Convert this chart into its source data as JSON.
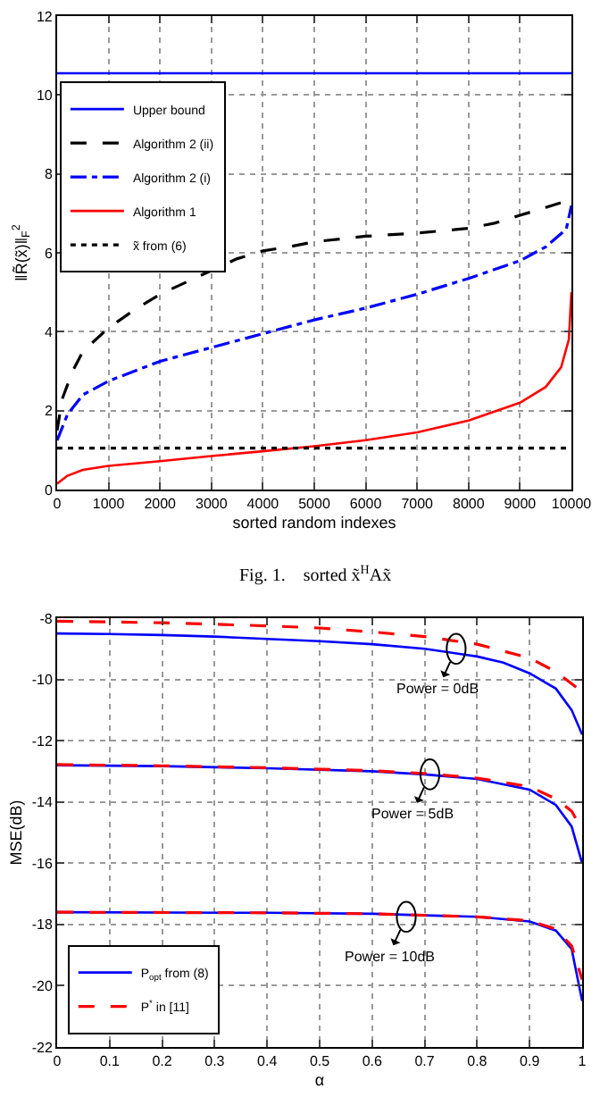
{
  "chart_data": [
    {
      "type": "line",
      "xlabel": "sorted random indexes",
      "ylabel": "‖R̃(x̃)‖$_{F}$$^{2}$",
      "annotations": [
        "Fig. 1.    sorted x̃$^{H}$Ax̃"
      ],
      "xlim": [
        0,
        10000
      ],
      "xticks": [
        0,
        1000,
        2000,
        3000,
        4000,
        5000,
        6000,
        7000,
        8000,
        9000,
        10000
      ],
      "ylim": [
        0,
        12
      ],
      "yticks": [
        0,
        2,
        4,
        6,
        8,
        10,
        12
      ],
      "grid": true,
      "legend": "top left",
      "series": [
        {
          "name": "Upper bound",
          "color": "#0000ff",
          "line_style": "solid",
          "x": [
            0,
            10000
          ],
          "values": [
            10.55,
            10.55
          ]
        },
        {
          "name": "Algorithm 2 (ii)",
          "color": "#000000",
          "line_style": "dashed",
          "x": [
            0,
            100,
            300,
            500,
            1000,
            1500,
            2000,
            2500,
            3500,
            4000,
            4500,
            5000,
            6000,
            7000,
            8000,
            8500,
            9000,
            9500,
            10000
          ],
          "values": [
            1.5,
            2.3,
            3.0,
            3.5,
            4.1,
            4.55,
            4.95,
            5.25,
            5.85,
            6.05,
            6.15,
            6.28,
            6.42,
            6.5,
            6.62,
            6.75,
            6.95,
            7.15,
            7.35
          ]
        },
        {
          "name": "Algorithm 2 (i)",
          "color": "#0000ff",
          "line_style": "dashdot",
          "x": [
            0,
            200,
            500,
            1000,
            2000,
            3000,
            4000,
            5000,
            6000,
            7000,
            8000,
            9000,
            9500,
            9900,
            10000
          ],
          "values": [
            1.25,
            1.9,
            2.4,
            2.75,
            3.25,
            3.6,
            3.95,
            4.3,
            4.6,
            4.95,
            5.35,
            5.8,
            6.15,
            6.6,
            7.2
          ]
        },
        {
          "name": "Algorithm 1",
          "color": "#ff0000",
          "line_style": "solid",
          "x": [
            0,
            200,
            500,
            1000,
            2000,
            3000,
            4000,
            5000,
            6000,
            7000,
            8000,
            9000,
            9500,
            9800,
            9950,
            10000
          ],
          "values": [
            0.15,
            0.35,
            0.5,
            0.6,
            0.72,
            0.85,
            0.97,
            1.1,
            1.25,
            1.45,
            1.75,
            2.2,
            2.6,
            3.1,
            3.8,
            5.0
          ]
        },
        {
          "name": "x̃ from (6)",
          "color": "#000000",
          "line_style": "dotted",
          "x": [
            0,
            10000
          ],
          "values": [
            1.05,
            1.05
          ]
        }
      ]
    },
    {
      "type": "line",
      "xlabel": "α",
      "ylabel": "MSE(dB)",
      "annotations": [
        {
          "text": "Power = 0dB",
          "x": 0.76,
          "y": -9.0
        },
        {
          "text": "Power = 5dB",
          "x": 0.71,
          "y": -13.1
        },
        {
          "text": "Power = 10dB",
          "x": 0.665,
          "y": -17.75
        }
      ],
      "xlim": [
        0,
        1
      ],
      "xticks": [
        0,
        0.1,
        0.2,
        0.3,
        0.4,
        0.5,
        0.6,
        0.7,
        0.8,
        0.9,
        1
      ],
      "ylim": [
        -22,
        -8
      ],
      "yticks": [
        -22,
        -20,
        -18,
        -16,
        -14,
        -12,
        -10,
        -8
      ],
      "grid": true,
      "legend": "bottom left",
      "series": [
        {
          "name": "P$_{opt}$ from (8)",
          "color": "#0000ff",
          "line_style": "solid",
          "x": [
            0,
            0.1,
            0.2,
            0.3,
            0.4,
            0.5,
            0.6,
            0.7,
            0.8,
            0.85,
            0.9,
            0.95,
            0.98,
            1.0
          ],
          "values": [
            -8.5,
            -8.52,
            -8.55,
            -8.6,
            -8.68,
            -8.75,
            -8.85,
            -9.0,
            -9.25,
            -9.45,
            -9.8,
            -10.3,
            -11.0,
            -11.8
          ]
        },
        {
          "name": "P$^{*}$ in [11]",
          "color": "#ff0000",
          "line_style": "dashed",
          "x": [
            0,
            0.2,
            0.4,
            0.5,
            0.6,
            0.7,
            0.8,
            0.9,
            0.95,
            1.0
          ],
          "values": [
            -8.1,
            -8.15,
            -8.25,
            -8.32,
            -8.45,
            -8.6,
            -8.85,
            -9.3,
            -9.75,
            -10.4
          ]
        },
        {
          "color": "#0000ff",
          "line_style": "solid",
          "x": [
            0,
            0.2,
            0.4,
            0.6,
            0.7,
            0.8,
            0.9,
            0.95,
            0.98,
            1.0
          ],
          "values": [
            -12.8,
            -12.83,
            -12.9,
            -13.0,
            -13.1,
            -13.25,
            -13.6,
            -14.1,
            -14.8,
            -16.0
          ]
        },
        {
          "color": "#ff0000",
          "line_style": "dashed",
          "x": [
            0,
            0.2,
            0.4,
            0.6,
            0.7,
            0.8,
            0.9,
            0.95,
            0.98,
            1.0
          ],
          "values": [
            -12.78,
            -12.82,
            -12.88,
            -12.98,
            -13.07,
            -13.22,
            -13.5,
            -13.9,
            -14.3,
            -14.9
          ]
        },
        {
          "color": "#0000ff",
          "line_style": "solid",
          "x": [
            0,
            0.4,
            0.6,
            0.7,
            0.8,
            0.9,
            0.95,
            0.98,
            1.0
          ],
          "values": [
            -17.6,
            -17.62,
            -17.65,
            -17.7,
            -17.75,
            -17.9,
            -18.2,
            -18.8,
            -20.5
          ]
        },
        {
          "color": "#ff0000",
          "line_style": "dashed",
          "x": [
            0,
            0.4,
            0.6,
            0.7,
            0.8,
            0.9,
            0.95,
            0.98,
            1.0
          ],
          "values": [
            -17.6,
            -17.62,
            -17.65,
            -17.7,
            -17.75,
            -17.88,
            -18.15,
            -18.7,
            -19.8
          ]
        }
      ]
    }
  ]
}
